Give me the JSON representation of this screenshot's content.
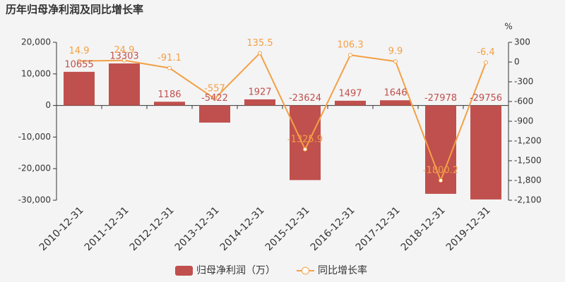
{
  "chart_data": {
    "type": "bar",
    "title": "历年归母净利润及同比增长率",
    "y2_label": "%",
    "categories": [
      "2010-12-31",
      "2011-12-31",
      "2012-12-31",
      "2013-12-31",
      "2014-12-31",
      "2015-12-31",
      "2016-12-31",
      "2017-12-31",
      "2018-12-31",
      "2019-12-31"
    ],
    "series": [
      {
        "name": "归母净利润（万）",
        "type": "bar",
        "color": "#c0504d",
        "values": [
          10655,
          13303,
          1186,
          -5422,
          1927,
          -23624,
          1497,
          1646,
          -27978,
          -29756
        ]
      },
      {
        "name": "同比增长率",
        "type": "line",
        "axis": "y2",
        "color": "#f3a046",
        "values": [
          14.9,
          24.9,
          -91.1,
          -557,
          135.5,
          -1325.9,
          106.3,
          9.9,
          -1800.2,
          -6.4
        ]
      }
    ],
    "ylim": [
      -30000,
      20000
    ],
    "yticks": [
      {
        "value": -30000,
        "label": "-30,000"
      },
      {
        "value": -20000,
        "label": "-20,000"
      },
      {
        "value": -10000,
        "label": "-10,000"
      },
      0,
      {
        "value": 10000,
        "label": "10,000"
      },
      {
        "value": 20000,
        "label": "20,000"
      }
    ],
    "y2lim": [
      -2100,
      300
    ],
    "y2ticks": [
      {
        "value": -2100,
        "label": "-2,100"
      },
      {
        "value": -1800,
        "label": "-1,800"
      },
      {
        "value": -1500,
        "label": "-1,500"
      },
      {
        "value": -1200,
        "label": "-1,200"
      },
      -900,
      -600,
      -300,
      0,
      300
    ],
    "grid": false,
    "legend": "bottom"
  }
}
